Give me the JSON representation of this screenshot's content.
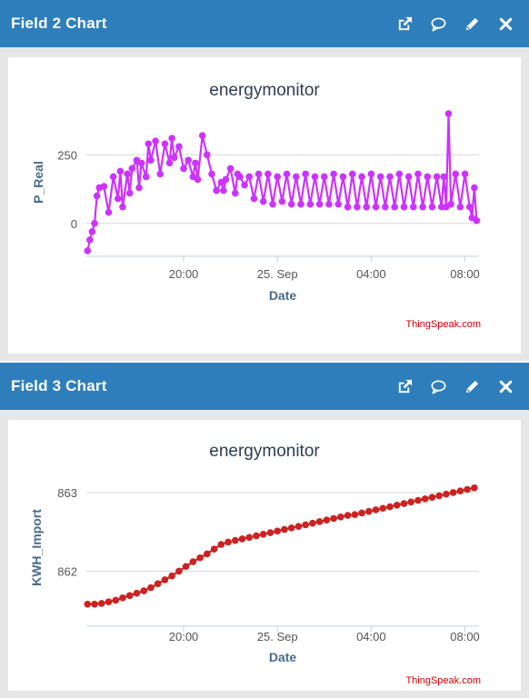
{
  "panels": [
    {
      "title": "Field 2 Chart",
      "tools": [
        "external-link-icon",
        "comment-icon",
        "pencil-icon",
        "close-icon"
      ],
      "chart_data": {
        "type": "line",
        "title": "energymonitor",
        "xlabel": "Date",
        "ylabel": "P_Real",
        "yticks": [
          0,
          250
        ],
        "ylim": [
          -120,
          420
        ],
        "xlim": [
          15.85,
          32.6
        ],
        "xticks": [
          {
            "v": 20,
            "label": "20:00"
          },
          {
            "v": 24,
            "label": "25. Sep"
          },
          {
            "v": 28,
            "label": "04:00"
          },
          {
            "v": 32,
            "label": "08:00"
          }
        ],
        "color": "#cc33ff",
        "credit": "ThingSpeak.com",
        "series": [
          {
            "x": [
              15.9,
              16.0,
              16.1,
              16.2,
              16.3,
              16.4,
              16.6,
              16.8,
              17.0,
              17.2,
              17.3,
              17.4,
              17.6,
              17.7,
              17.8,
              18.0,
              18.1,
              18.2,
              18.4,
              18.5,
              18.6,
              18.8,
              19.0,
              19.2,
              19.4,
              19.5,
              19.6,
              19.8,
              20.0,
              20.2,
              20.4,
              20.5,
              20.6,
              20.8,
              21.0,
              21.2,
              21.4,
              21.6,
              21.7,
              21.8,
              22.0,
              22.2,
              22.3,
              22.4,
              22.6,
              22.8,
              23.0,
              23.2,
              23.4,
              23.6,
              23.8,
              24.0,
              24.2,
              24.4,
              24.6,
              24.8,
              25.0,
              25.2,
              25.4,
              25.6,
              25.8,
              26.0,
              26.2,
              26.4,
              26.6,
              26.8,
              27.0,
              27.2,
              27.4,
              27.6,
              27.8,
              28.0,
              28.2,
              28.4,
              28.6,
              28.8,
              29.0,
              29.2,
              29.4,
              29.6,
              29.8,
              30.0,
              30.2,
              30.4,
              30.6,
              30.8,
              31.0,
              31.1,
              31.2,
              31.3,
              31.4,
              31.6,
              31.8,
              32.0,
              32.2,
              32.3,
              32.4,
              32.5
            ],
            "y": [
              -100,
              -60,
              -30,
              0,
              100,
              130,
              135,
              40,
              170,
              90,
              190,
              60,
              180,
              110,
              200,
              230,
              130,
              220,
              170,
              290,
              230,
              300,
              180,
              290,
              220,
              310,
              240,
              280,
              200,
              230,
              170,
              220,
              160,
              320,
              250,
              180,
              120,
              150,
              120,
              160,
              200,
              110,
              180,
              170,
              140,
              170,
              90,
              180,
              80,
              180,
              70,
              170,
              80,
              180,
              70,
              170,
              70,
              180,
              70,
              170,
              70,
              170,
              70,
              180,
              70,
              170,
              60,
              180,
              60,
              170,
              60,
              180,
              60,
              170,
              60,
              170,
              60,
              180,
              60,
              170,
              60,
              180,
              60,
              170,
              60,
              170,
              60,
              170,
              60,
              400,
              70,
              180,
              60,
              180,
              60,
              20,
              130,
              10
            ]
          }
        ]
      }
    },
    {
      "title": "Field 3 Chart",
      "tools": [
        "external-link-icon",
        "comment-icon",
        "pencil-icon",
        "close-icon"
      ],
      "chart_data": {
        "type": "line",
        "title": "energymonitor",
        "xlabel": "Date",
        "ylabel": "KWH_Import",
        "yticks": [
          862,
          863
        ],
        "ylim": [
          861.3,
          863.3
        ],
        "xlim": [
          15.85,
          32.6
        ],
        "xticks": [
          {
            "v": 20,
            "label": "20:00"
          },
          {
            "v": 24,
            "label": "25. Sep"
          },
          {
            "v": 28,
            "label": "04:00"
          },
          {
            "v": 32,
            "label": "08:00"
          }
        ],
        "color": "#cc2222",
        "credit": "ThingSpeak.com",
        "series": [
          {
            "x": [
              15.9,
              16.2,
              16.5,
              16.8,
              17.1,
              17.4,
              17.7,
              18.0,
              18.3,
              18.6,
              18.9,
              19.2,
              19.5,
              19.8,
              20.1,
              20.4,
              20.7,
              21.0,
              21.3,
              21.6,
              21.9,
              22.2,
              22.5,
              22.8,
              23.1,
              23.4,
              23.7,
              24.0,
              24.3,
              24.6,
              24.9,
              25.2,
              25.5,
              25.8,
              26.1,
              26.4,
              26.7,
              27.0,
              27.3,
              27.6,
              27.9,
              28.2,
              28.5,
              28.8,
              29.1,
              29.4,
              29.7,
              30.0,
              30.3,
              30.6,
              30.9,
              31.2,
              31.5,
              31.8,
              32.1,
              32.4
            ],
            "y": [
              861.58,
              861.58,
              861.59,
              861.61,
              861.63,
              861.66,
              861.69,
              861.72,
              861.75,
              861.79,
              861.84,
              861.89,
              861.94,
              862.0,
              862.06,
              862.12,
              862.17,
              862.22,
              862.28,
              862.34,
              862.37,
              862.39,
              862.41,
              862.43,
              862.45,
              862.47,
              862.49,
              862.51,
              862.53,
              862.55,
              862.57,
              862.59,
              862.61,
              862.63,
              862.65,
              862.67,
              862.69,
              862.71,
              862.72,
              862.74,
              862.76,
              862.78,
              862.8,
              862.82,
              862.84,
              862.86,
              862.88,
              862.9,
              862.92,
              862.94,
              862.96,
              862.98,
              863.0,
              863.02,
              863.04,
              863.06
            ]
          }
        ]
      }
    }
  ]
}
